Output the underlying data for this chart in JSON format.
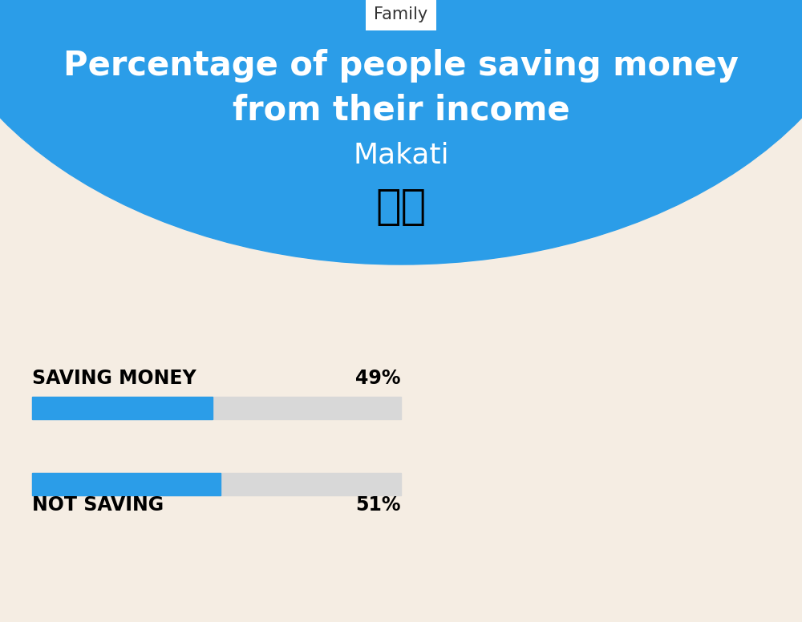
{
  "title_line1": "Percentage of people saving money",
  "title_line2": "from their income",
  "subtitle": "Makati",
  "category_label": "Family",
  "bg_color": "#f5ede3",
  "blue_color": "#2b9de8",
  "bar_blue": "#2b9de8",
  "bar_gray": "#d8d8d8",
  "label1": "SAVING MONEY",
  "value1": 49,
  "label1_text": "49%",
  "label2": "NOT SAVING",
  "value2": 51,
  "label2_text": "51%",
  "text_color": "#000000",
  "white": "#ffffff",
  "fig_width": 10.0,
  "fig_height": 7.76,
  "dpi": 100
}
